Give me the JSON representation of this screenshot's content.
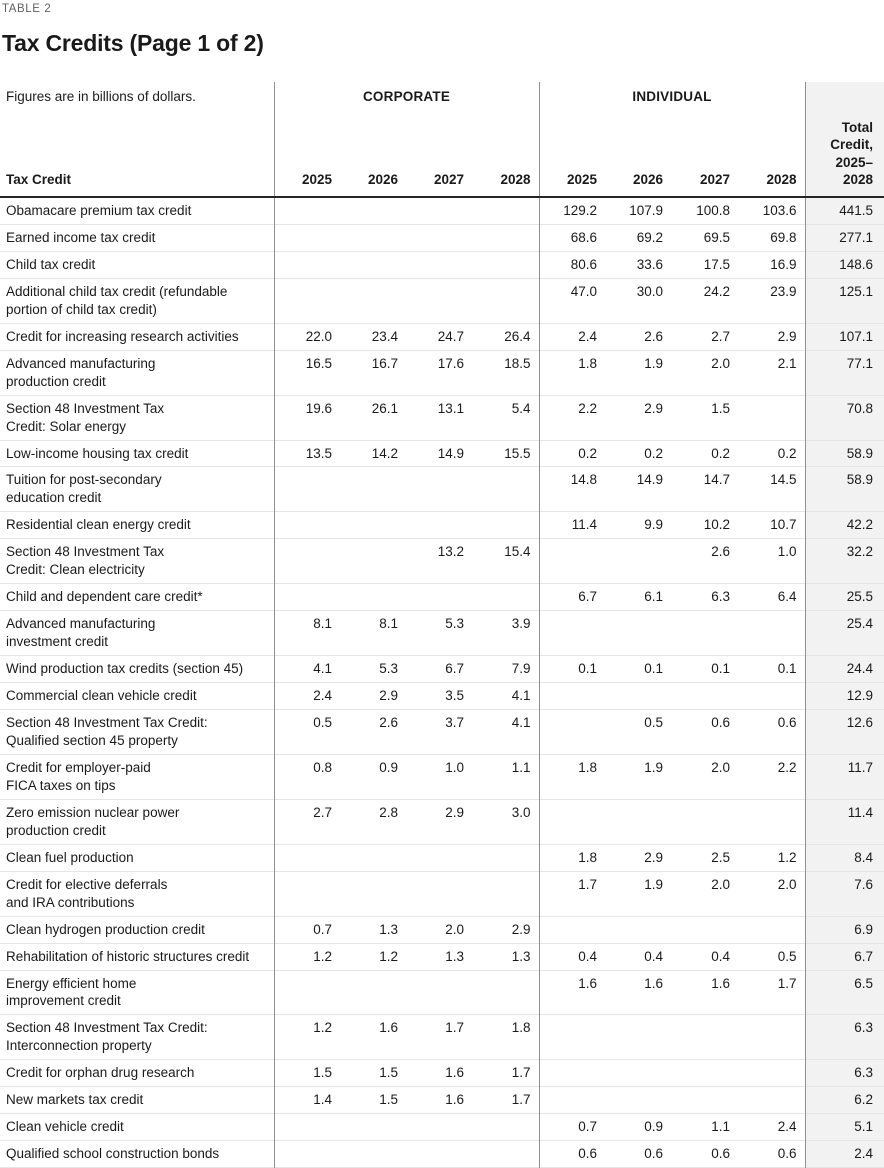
{
  "meta": {
    "table_label": "TABLE 2",
    "title": "Tax Credits (Page 1 of 2)"
  },
  "table": {
    "caption": "Figures are in billions of dollars.",
    "row_header": "Tax Credit",
    "groups": [
      {
        "label": "CORPORATE"
      },
      {
        "label": "INDIVIDUAL"
      }
    ],
    "years": [
      "2025",
      "2026",
      "2027",
      "2028"
    ],
    "total_header": "Total\nCredit,\n2025–\n2028",
    "colors": {
      "total_column_bg": "#f2f2f2",
      "header_rule": "#262626",
      "row_rule": "#e5e5e5",
      "column_rule": "#8f8f8f",
      "table_label_gray": "#5f6062"
    },
    "rows": [
      {
        "label": "Obamacare premium tax credit",
        "corporate": [
          "",
          "",
          "",
          ""
        ],
        "individual": [
          "129.2",
          "107.9",
          "100.8",
          "103.6"
        ],
        "total": "441.5"
      },
      {
        "label": "Earned income tax credit",
        "corporate": [
          "",
          "",
          "",
          ""
        ],
        "individual": [
          "68.6",
          "69.2",
          "69.5",
          "69.8"
        ],
        "total": "277.1"
      },
      {
        "label": "Child tax credit",
        "corporate": [
          "",
          "",
          "",
          ""
        ],
        "individual": [
          "80.6",
          "33.6",
          "17.5",
          "16.9"
        ],
        "total": "148.6"
      },
      {
        "label": "Additional child tax credit (refundable\nportion of child tax credit)",
        "corporate": [
          "",
          "",
          "",
          ""
        ],
        "individual": [
          "47.0",
          "30.0",
          "24.2",
          "23.9"
        ],
        "total": "125.1"
      },
      {
        "label": "Credit for increasing research activities",
        "corporate": [
          "22.0",
          "23.4",
          "24.7",
          "26.4"
        ],
        "individual": [
          "2.4",
          "2.6",
          "2.7",
          "2.9"
        ],
        "total": "107.1"
      },
      {
        "label": "Advanced manufacturing\nproduction credit",
        "corporate": [
          "16.5",
          "16.7",
          "17.6",
          "18.5"
        ],
        "individual": [
          "1.8",
          "1.9",
          "2.0",
          "2.1"
        ],
        "total": "77.1"
      },
      {
        "label": "Section 48 Investment Tax\nCredit: Solar energy",
        "corporate": [
          "19.6",
          "26.1",
          "13.1",
          "5.4"
        ],
        "individual": [
          "2.2",
          "2.9",
          "1.5",
          ""
        ],
        "total": "70.8"
      },
      {
        "label": "Low-income housing tax credit",
        "corporate": [
          "13.5",
          "14.2",
          "14.9",
          "15.5"
        ],
        "individual": [
          "0.2",
          "0.2",
          "0.2",
          "0.2"
        ],
        "total": "58.9"
      },
      {
        "label": "Tuition for post-secondary\neducation credit",
        "corporate": [
          "",
          "",
          "",
          ""
        ],
        "individual": [
          "14.8",
          "14.9",
          "14.7",
          "14.5"
        ],
        "total": "58.9"
      },
      {
        "label": "Residential clean energy credit",
        "corporate": [
          "",
          "",
          "",
          ""
        ],
        "individual": [
          "11.4",
          "9.9",
          "10.2",
          "10.7"
        ],
        "total": "42.2"
      },
      {
        "label": "Section 48 Investment Tax\nCredit: Clean electricity",
        "corporate": [
          "",
          "",
          "13.2",
          "15.4"
        ],
        "individual": [
          "",
          "",
          "2.6",
          "1.0"
        ],
        "total": "32.2"
      },
      {
        "label": "Child and dependent care credit*",
        "corporate": [
          "",
          "",
          "",
          ""
        ],
        "individual": [
          "6.7",
          "6.1",
          "6.3",
          "6.4"
        ],
        "total": "25.5"
      },
      {
        "label": "Advanced manufacturing\ninvestment credit",
        "corporate": [
          "8.1",
          "8.1",
          "5.3",
          "3.9"
        ],
        "individual": [
          "",
          "",
          "",
          ""
        ],
        "total": "25.4"
      },
      {
        "label": "Wind production tax credits (section 45)",
        "corporate": [
          "4.1",
          "5.3",
          "6.7",
          "7.9"
        ],
        "individual": [
          "0.1",
          "0.1",
          "0.1",
          "0.1"
        ],
        "total": "24.4"
      },
      {
        "label": "Commercial clean vehicle credit",
        "corporate": [
          "2.4",
          "2.9",
          "3.5",
          "4.1"
        ],
        "individual": [
          "",
          "",
          "",
          ""
        ],
        "total": "12.9"
      },
      {
        "label": "Section 48 Investment Tax Credit:\nQualified section 45 property",
        "corporate": [
          "0.5",
          "2.6",
          "3.7",
          "4.1"
        ],
        "individual": [
          "",
          "0.5",
          "0.6",
          "0.6"
        ],
        "total": "12.6"
      },
      {
        "label": "Credit for employer-paid\nFICA taxes on tips",
        "corporate": [
          "0.8",
          "0.9",
          "1.0",
          "1.1"
        ],
        "individual": [
          "1.8",
          "1.9",
          "2.0",
          "2.2"
        ],
        "total": "11.7"
      },
      {
        "label": "Zero emission nuclear power\nproduction credit",
        "corporate": [
          "2.7",
          "2.8",
          "2.9",
          "3.0"
        ],
        "individual": [
          "",
          "",
          "",
          ""
        ],
        "total": "11.4"
      },
      {
        "label": "Clean fuel production",
        "corporate": [
          "",
          "",
          "",
          ""
        ],
        "individual": [
          "1.8",
          "2.9",
          "2.5",
          "1.2"
        ],
        "total": "8.4"
      },
      {
        "label": "Credit for elective deferrals\nand IRA contributions",
        "corporate": [
          "",
          "",
          "",
          ""
        ],
        "individual": [
          "1.7",
          "1.9",
          "2.0",
          "2.0"
        ],
        "total": "7.6"
      },
      {
        "label": "Clean hydrogen production credit",
        "corporate": [
          "0.7",
          "1.3",
          "2.0",
          "2.9"
        ],
        "individual": [
          "",
          "",
          "",
          ""
        ],
        "total": "6.9"
      },
      {
        "label": "Rehabilitation of historic structures credit",
        "corporate": [
          "1.2",
          "1.2",
          "1.3",
          "1.3"
        ],
        "individual": [
          "0.4",
          "0.4",
          "0.4",
          "0.5"
        ],
        "total": "6.7"
      },
      {
        "label": "Energy efficient home\nimprovement credit",
        "corporate": [
          "",
          "",
          "",
          ""
        ],
        "individual": [
          "1.6",
          "1.6",
          "1.6",
          "1.7"
        ],
        "total": "6.5"
      },
      {
        "label": "Section 48 Investment Tax Credit:\nInterconnection property",
        "corporate": [
          "1.2",
          "1.6",
          "1.7",
          "1.8"
        ],
        "individual": [
          "",
          "",
          "",
          ""
        ],
        "total": "6.3"
      },
      {
        "label": "Credit for orphan drug research",
        "corporate": [
          "1.5",
          "1.5",
          "1.6",
          "1.7"
        ],
        "individual": [
          "",
          "",
          "",
          ""
        ],
        "total": "6.3"
      },
      {
        "label": "New markets tax credit",
        "corporate": [
          "1.4",
          "1.5",
          "1.6",
          "1.7"
        ],
        "individual": [
          "",
          "",
          "",
          ""
        ],
        "total": "6.2"
      },
      {
        "label": "Clean vehicle credit",
        "corporate": [
          "",
          "",
          "",
          ""
        ],
        "individual": [
          "0.7",
          "0.9",
          "1.1",
          "2.4"
        ],
        "total": "5.1"
      },
      {
        "label": "Qualified school construction bonds",
        "corporate": [
          "",
          "",
          "",
          ""
        ],
        "individual": [
          "0.6",
          "0.6",
          "0.6",
          "0.6"
        ],
        "total": "2.4"
      }
    ]
  }
}
